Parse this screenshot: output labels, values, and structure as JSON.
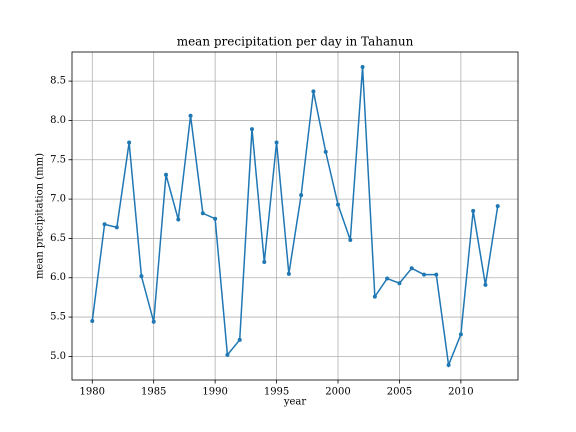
{
  "chart_data": {
    "type": "line",
    "title": "mean precipitation per day in Tahanun",
    "x_label": "year",
    "y_label": "mean precipitation (mm)",
    "x": [
      1980,
      1981,
      1982,
      1983,
      1984,
      1985,
      1986,
      1987,
      1988,
      1989,
      1990,
      1991,
      1992,
      1993,
      1994,
      1995,
      1996,
      1997,
      1998,
      1999,
      2000,
      2001,
      2002,
      2003,
      2004,
      2005,
      2006,
      2007,
      2008,
      2009,
      2010,
      2011,
      2012,
      2013
    ],
    "series": [
      {
        "color": "#1f77b4",
        "values": [
          5.45,
          6.68,
          6.64,
          7.72,
          6.02,
          5.44,
          7.31,
          6.74,
          8.06,
          6.82,
          6.75,
          5.02,
          5.21,
          7.89,
          6.2,
          7.72,
          6.05,
          7.05,
          8.37,
          7.6,
          6.93,
          6.48,
          8.68,
          5.76,
          5.99,
          5.93,
          6.12,
          6.04,
          6.04,
          4.89,
          5.28,
          6.85,
          5.91,
          6.91
        ]
      }
    ],
    "xlim": [
      1978.35,
      2014.65
    ],
    "ylim": [
      4.7,
      8.87
    ],
    "xticks": [
      1980,
      1985,
      1990,
      1995,
      2000,
      2005,
      2010
    ],
    "yticks": [
      {
        "value": 5.0,
        "label": "5.0"
      },
      5.5,
      {
        "value": 6.0,
        "label": "6.0"
      },
      6.5,
      {
        "value": 7.0,
        "label": "7.0"
      },
      7.5,
      {
        "value": 8.0,
        "label": "8.0"
      },
      8.5
    ],
    "grid": true
  }
}
